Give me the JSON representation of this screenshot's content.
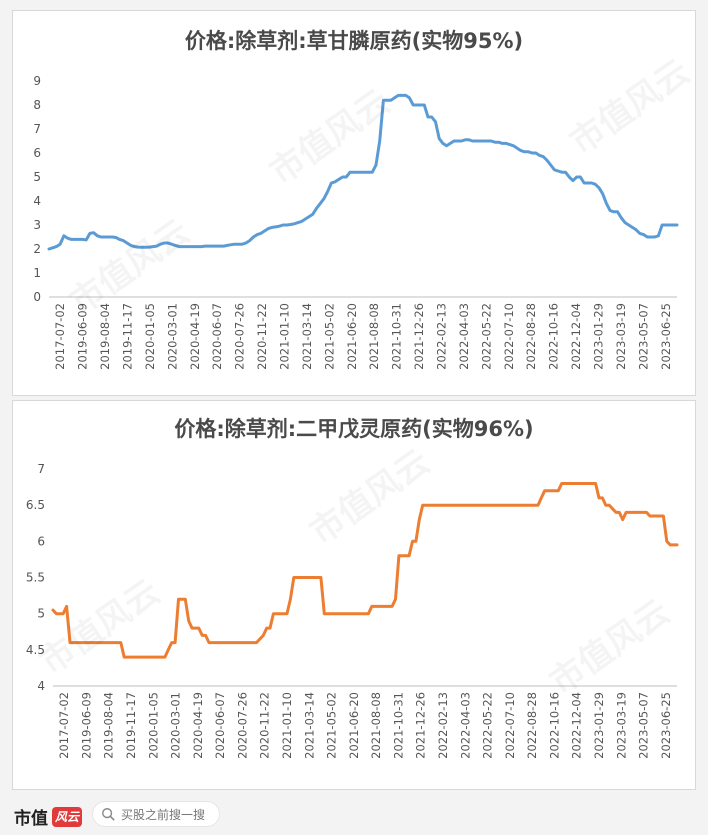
{
  "chart_data": [
    {
      "type": "line",
      "title": "价格:除草剂:草甘膦原药(实物95%)",
      "color": "#5b9bd5",
      "ylim": [
        0,
        9
      ],
      "yticks": [
        0,
        1,
        2,
        3,
        4,
        5,
        6,
        7,
        8,
        9
      ],
      "tick_labels": [
        "2017-07-02",
        "2019-06-09",
        "2019-08-04",
        "2019-11-17",
        "2020-01-05",
        "2020-03-01",
        "2020-04-19",
        "2020-06-07",
        "2020-07-26",
        "2020-11-22",
        "2021-01-10",
        "2021-03-14",
        "2021-05-02",
        "2021-06-20",
        "2021-08-08",
        "2021-10-31",
        "2021-12-26",
        "2022-02-13",
        "2022-04-03",
        "2022-05-22",
        "2022-07-10",
        "2022-08-28",
        "2022-10-16",
        "2022-12-04",
        "2023-01-29",
        "2023-03-19",
        "2023-05-07",
        "2023-06-25"
      ],
      "values": [
        2.0,
        2.05,
        2.1,
        2.2,
        2.55,
        2.45,
        2.4,
        2.4,
        2.4,
        2.4,
        2.38,
        2.65,
        2.68,
        2.55,
        2.5,
        2.5,
        2.5,
        2.5,
        2.48,
        2.4,
        2.35,
        2.25,
        2.15,
        2.1,
        2.08,
        2.07,
        2.07,
        2.08,
        2.1,
        2.12,
        2.2,
        2.25,
        2.25,
        2.2,
        2.15,
        2.1,
        2.1,
        2.1,
        2.1,
        2.1,
        2.1,
        2.1,
        2.12,
        2.12,
        2.12,
        2.12,
        2.12,
        2.12,
        2.15,
        2.18,
        2.2,
        2.2,
        2.2,
        2.25,
        2.35,
        2.5,
        2.6,
        2.65,
        2.75,
        2.85,
        2.9,
        2.92,
        2.95,
        3.0,
        3.0,
        3.02,
        3.05,
        3.1,
        3.15,
        3.25,
        3.35,
        3.45,
        3.7,
        3.9,
        4.1,
        4.4,
        4.75,
        4.8,
        4.9,
        5.0,
        5.0,
        5.2,
        5.2,
        5.2,
        5.2,
        5.2,
        5.2,
        5.2,
        5.5,
        6.5,
        8.2,
        8.2,
        8.2,
        8.3,
        8.4,
        8.4,
        8.4,
        8.3,
        8.0,
        8.0,
        8.0,
        8.0,
        7.5,
        7.5,
        7.3,
        6.6,
        6.4,
        6.3,
        6.4,
        6.5,
        6.5,
        6.5,
        6.55,
        6.55,
        6.5,
        6.5,
        6.5,
        6.5,
        6.5,
        6.5,
        6.45,
        6.45,
        6.4,
        6.4,
        6.35,
        6.3,
        6.2,
        6.1,
        6.05,
        6.05,
        6.0,
        6.0,
        5.9,
        5.85,
        5.7,
        5.5,
        5.3,
        5.25,
        5.2,
        5.2,
        5.0,
        4.85,
        5.0,
        5.0,
        4.75,
        4.75,
        4.75,
        4.7,
        4.55,
        4.3,
        3.9,
        3.6,
        3.55,
        3.55,
        3.3,
        3.1,
        3.0,
        2.9,
        2.8,
        2.65,
        2.6,
        2.5,
        2.5,
        2.5,
        2.55,
        3.0,
        3.0,
        3.0,
        3.0,
        3.0
      ]
    },
    {
      "type": "line",
      "title": "价格:除草剂:二甲戊灵原药(实物96%)",
      "color": "#ed7d31",
      "ylim": [
        4,
        7
      ],
      "yticks": [
        4,
        4.5,
        5,
        5.5,
        6,
        6.5,
        7
      ],
      "tick_labels": [
        "2017-07-02",
        "2019-06-09",
        "2019-08-04",
        "2019-11-17",
        "2020-01-05",
        "2020-03-01",
        "2020-04-19",
        "2020-06-07",
        "2020-07-26",
        "2020-11-22",
        "2021-01-10",
        "2021-03-14",
        "2021-05-02",
        "2021-06-20",
        "2021-08-08",
        "2021-10-31",
        "2021-12-26",
        "2022-02-13",
        "2022-04-03",
        "2022-05-22",
        "2022-07-10",
        "2022-08-28",
        "2022-10-16",
        "2022-12-04",
        "2023-01-29",
        "2023-03-19",
        "2023-05-07",
        "2023-06-25"
      ],
      "values": [
        5.05,
        5.0,
        5.0,
        5.0,
        5.1,
        4.6,
        4.6,
        4.6,
        4.6,
        4.6,
        4.6,
        4.6,
        4.6,
        4.6,
        4.6,
        4.6,
        4.6,
        4.6,
        4.6,
        4.6,
        4.6,
        4.4,
        4.4,
        4.4,
        4.4,
        4.4,
        4.4,
        4.4,
        4.4,
        4.4,
        4.4,
        4.4,
        4.4,
        4.4,
        4.5,
        4.6,
        4.6,
        5.2,
        5.2,
        5.2,
        4.9,
        4.8,
        4.8,
        4.8,
        4.7,
        4.7,
        4.6,
        4.6,
        4.6,
        4.6,
        4.6,
        4.6,
        4.6,
        4.6,
        4.6,
        4.6,
        4.6,
        4.6,
        4.6,
        4.6,
        4.6,
        4.65,
        4.7,
        4.8,
        4.8,
        5.0,
        5.0,
        5.0,
        5.0,
        5.0,
        5.2,
        5.5,
        5.5,
        5.5,
        5.5,
        5.5,
        5.5,
        5.5,
        5.5,
        5.5,
        5.0,
        5.0,
        5.0,
        5.0,
        5.0,
        5.0,
        5.0,
        5.0,
        5.0,
        5.0,
        5.0,
        5.0,
        5.0,
        5.0,
        5.1,
        5.1,
        5.1,
        5.1,
        5.1,
        5.1,
        5.1,
        5.2,
        5.8,
        5.8,
        5.8,
        5.8,
        6.0,
        6.0,
        6.3,
        6.5,
        6.5,
        6.5,
        6.5,
        6.5,
        6.5,
        6.5,
        6.5,
        6.5,
        6.5,
        6.5,
        6.5,
        6.5,
        6.5,
        6.5,
        6.5,
        6.5,
        6.5,
        6.5,
        6.5,
        6.5,
        6.5,
        6.5,
        6.5,
        6.5,
        6.5,
        6.5,
        6.5,
        6.5,
        6.5,
        6.5,
        6.5,
        6.5,
        6.5,
        6.5,
        6.6,
        6.7,
        6.7,
        6.7,
        6.7,
        6.7,
        6.8,
        6.8,
        6.8,
        6.8,
        6.8,
        6.8,
        6.8,
        6.8,
        6.8,
        6.8,
        6.8,
        6.6,
        6.6,
        6.5,
        6.5,
        6.45,
        6.4,
        6.4,
        6.3,
        6.4,
        6.4,
        6.4,
        6.4,
        6.4,
        6.4,
        6.4,
        6.35,
        6.35,
        6.35,
        6.35,
        6.35,
        6.0,
        5.95,
        5.95,
        5.95
      ]
    }
  ],
  "footer": {
    "brand_name": "市值",
    "brand_logo_text": "风云",
    "search_placeholder": "买股之前搜一搜"
  },
  "watermark_text": "市值风云"
}
